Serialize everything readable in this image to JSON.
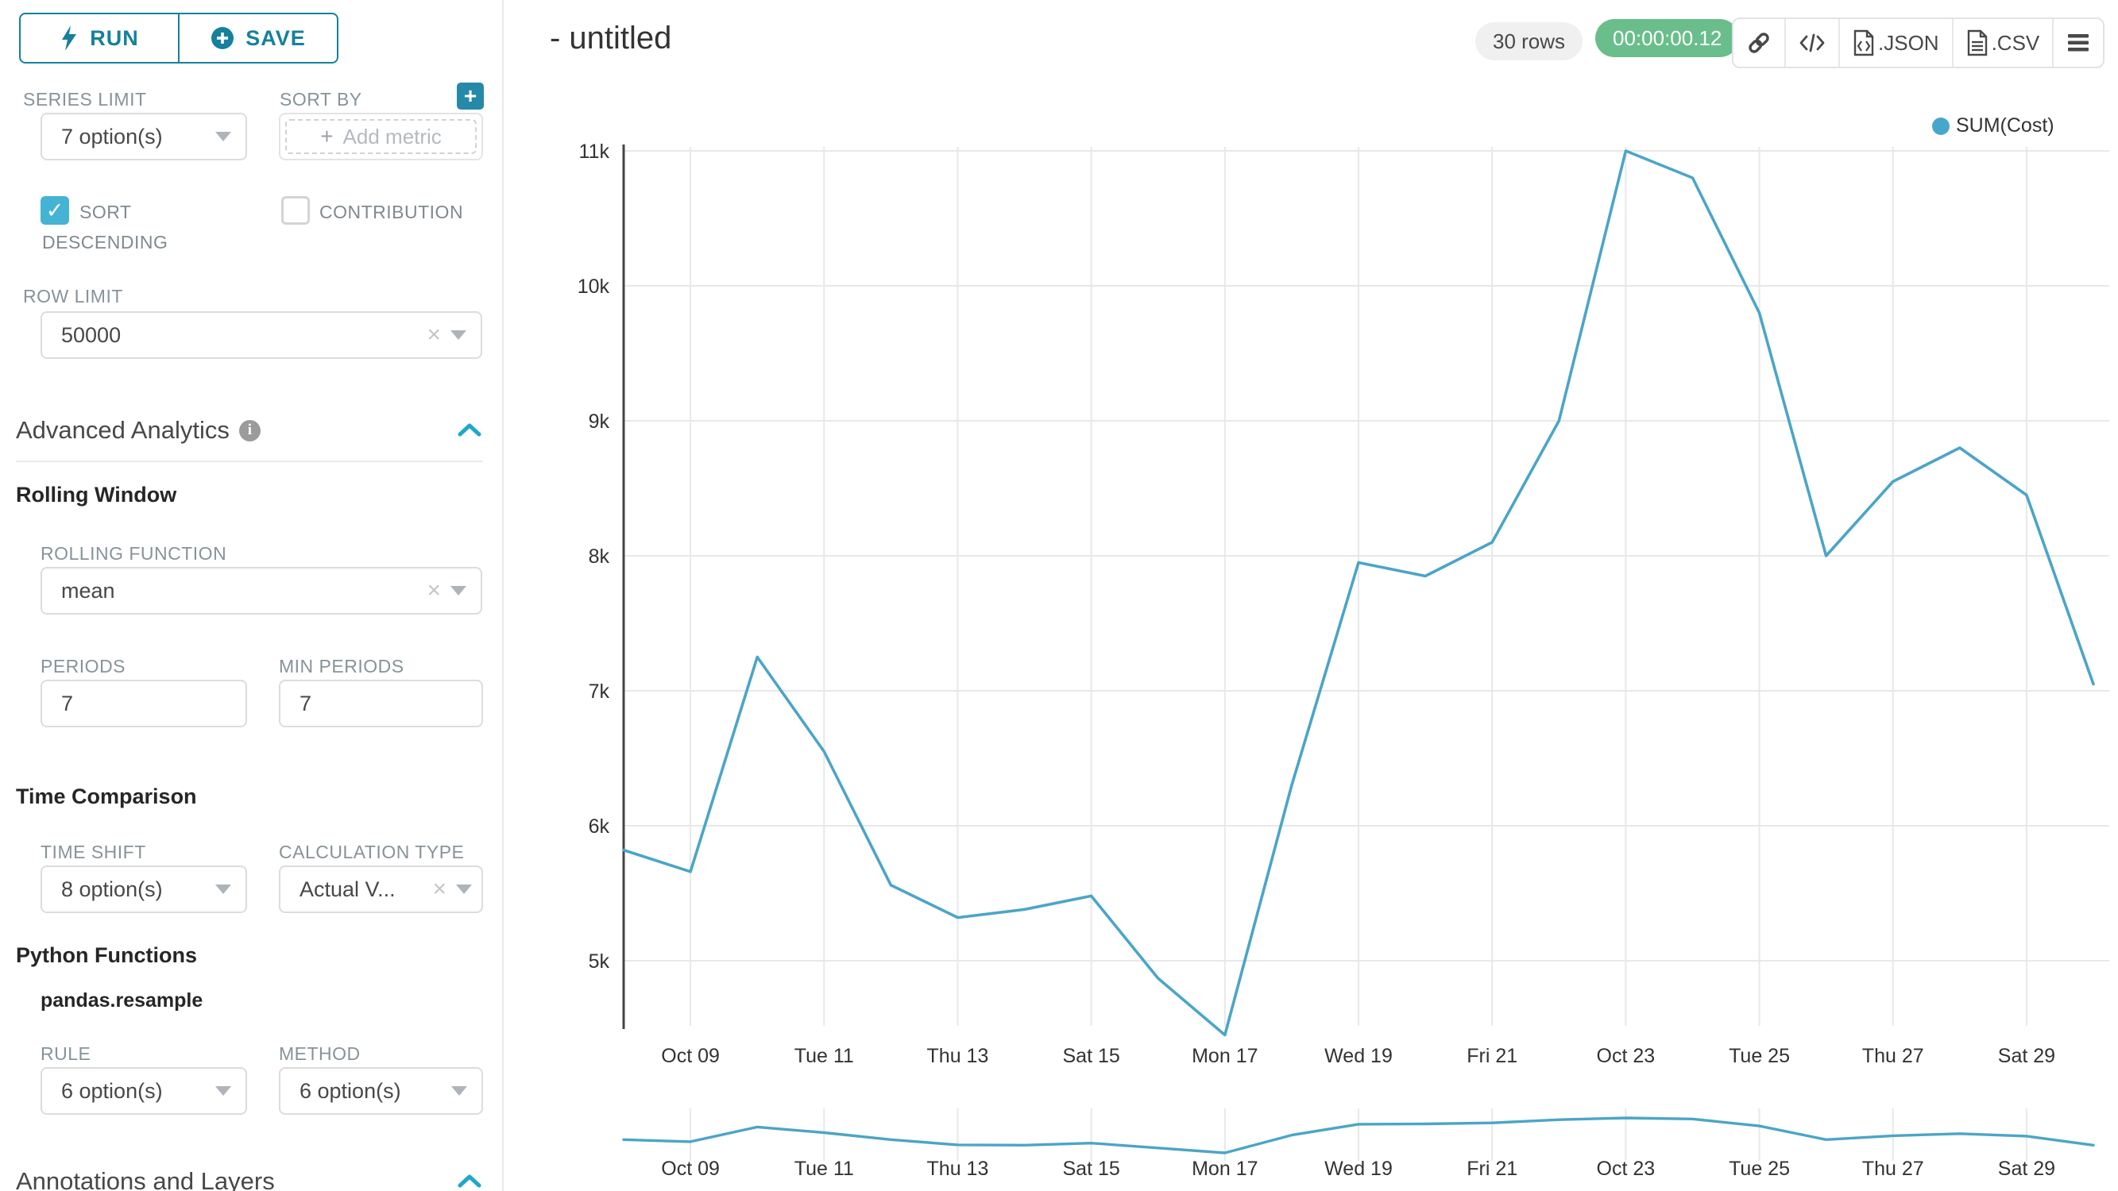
{
  "sidebar": {
    "run_label": "RUN",
    "save_label": "SAVE",
    "series_limit_label": "SERIES LIMIT",
    "series_limit_value": "7 option(s)",
    "sort_by_label": "SORT BY",
    "add_metric_placeholder": "Add metric",
    "sort_descending_line1": "SORT",
    "sort_descending_line2": "DESCENDING",
    "contribution_label": "CONTRIBUTION",
    "row_limit_label": "ROW LIMIT",
    "row_limit_value": "50000",
    "advanced_analytics_title": "Advanced Analytics",
    "rolling_window_title": "Rolling Window",
    "rolling_function_label": "ROLLING FUNCTION",
    "rolling_function_value": "mean",
    "periods_label": "PERIODS",
    "periods_value": "7",
    "min_periods_label": "MIN PERIODS",
    "min_periods_value": "7",
    "time_comparison_title": "Time Comparison",
    "time_shift_label": "TIME SHIFT",
    "time_shift_value": "8 option(s)",
    "calculation_type_label": "CALCULATION TYPE",
    "calculation_type_value": "Actual V...",
    "python_functions_title": "Python Functions",
    "pandas_resample_label": "pandas.resample",
    "rule_label": "RULE",
    "rule_value": "6 option(s)",
    "method_label": "METHOD",
    "method_value": "6 option(s)",
    "annotations_title": "Annotations and Layers"
  },
  "header": {
    "title": "- untitled",
    "rows_badge": "30 rows",
    "timer_badge": "00:00:00.12",
    "json_label": ".JSON",
    "csv_label": ".CSV"
  },
  "colors": {
    "primary_teal": "#16809E",
    "checkbox_teal": "#45B4D4",
    "collapse_chevron": "#20A7C9",
    "line": "#4BA5C7",
    "timer_green": "#69BE8B",
    "gridline": "#E8E8E8",
    "axis": "#454545",
    "label_gray": "#879399"
  },
  "chart_data": {
    "type": "line",
    "title": "",
    "legend_label": "SUM(Cost)",
    "legend_position": "top-right",
    "grid": true,
    "xlabel": "",
    "ylabel": "",
    "x": [
      "Oct 08",
      "Oct 09",
      "Oct 10",
      "Oct 11",
      "Oct 12",
      "Oct 13",
      "Oct 14",
      "Oct 15",
      "Oct 16",
      "Oct 17",
      "Oct 18",
      "Oct 19",
      "Oct 20",
      "Oct 21",
      "Oct 22",
      "Oct 23",
      "Oct 24",
      "Oct 25",
      "Oct 26",
      "Oct 27",
      "Oct 28",
      "Oct 29",
      "Oct 30"
    ],
    "values": [
      5820,
      5660,
      7250,
      6550,
      5560,
      5320,
      5380,
      5480,
      4870,
      4450,
      6300,
      7950,
      7850,
      8100,
      9000,
      11000,
      10800,
      9800,
      8000,
      8550,
      8800,
      8450,
      7050
    ],
    "x_tick_labels": [
      "Oct 09",
      "Tue 11",
      "Thu 13",
      "Sat 15",
      "Mon 17",
      "Wed 19",
      "Fri 21",
      "Oct 23",
      "Tue 25",
      "Thu 27",
      "Sat 29"
    ],
    "x_tick_indices": [
      1,
      3,
      5,
      7,
      9,
      11,
      13,
      15,
      17,
      19,
      21
    ],
    "y_tick_labels": [
      "5k",
      "6k",
      "7k",
      "8k",
      "9k",
      "10k",
      "11k"
    ],
    "y_tick_values": [
      5000,
      6000,
      7000,
      8000,
      9000,
      10000,
      11000
    ],
    "ylim": [
      4450,
      11100
    ],
    "preview_profile": [
      0.38,
      0.32,
      0.74,
      0.58,
      0.38,
      0.23,
      0.22,
      0.28,
      0.14,
      0,
      0.51,
      0.82,
      0.83,
      0.86,
      0.95,
      1.0,
      0.97,
      0.77,
      0.38,
      0.49,
      0.55,
      0.48,
      0.22
    ]
  }
}
